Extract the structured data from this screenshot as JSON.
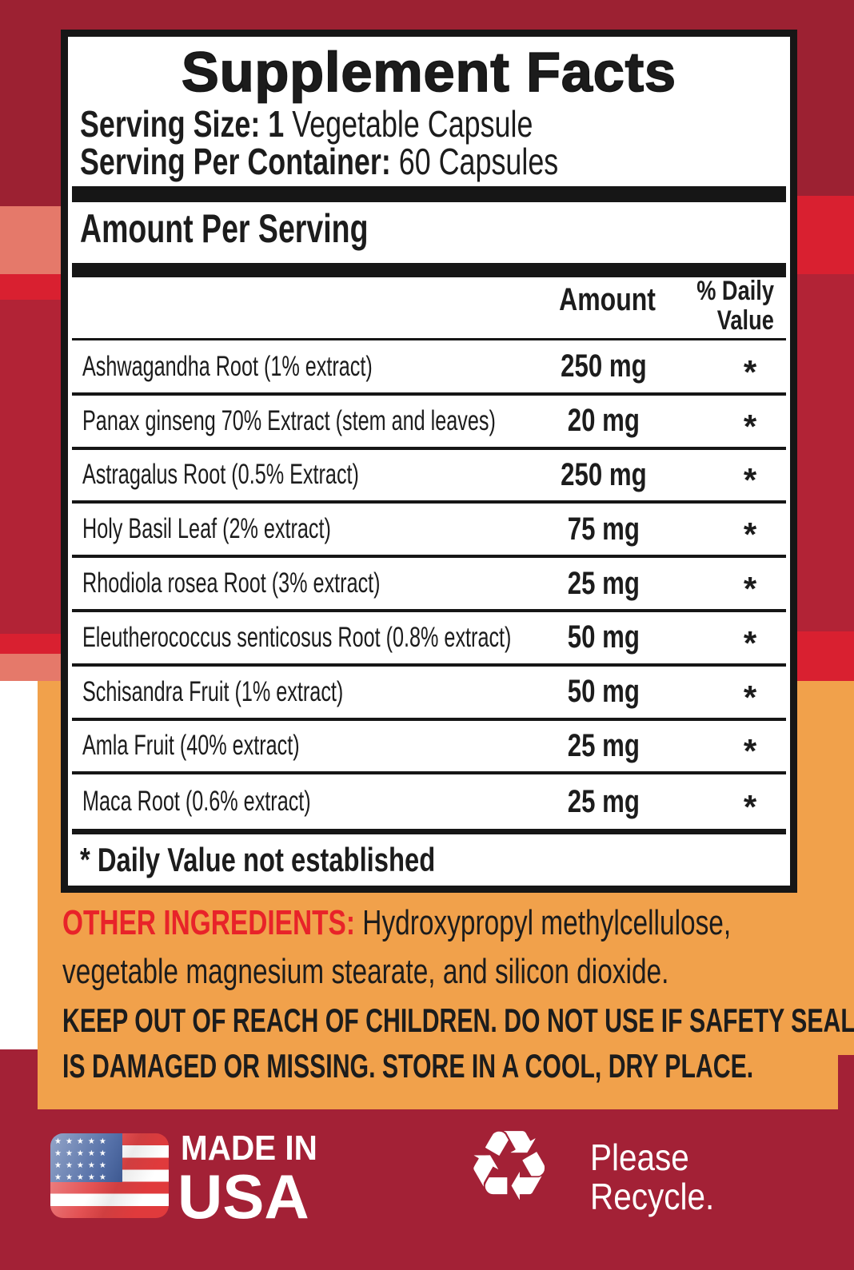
{
  "colors": {
    "bg_top_red": "#9C2132",
    "bg_mid_red": "#B22336",
    "bg_bright_red": "#D92030",
    "bg_salmon": "#E5796A",
    "bg_orange": "#F1A14B",
    "bg_bottom_red": "#A32136",
    "ingredients_label_red": "#E82329",
    "text_dark": "#1C1C1C",
    "flag_blue": "#3C5B9B",
    "flag_red": "#E03A3C"
  },
  "facts": {
    "title": "Supplement Facts",
    "serving_size_bold": "Serving Size: 1",
    "serving_size_regular": " Vegetable Capsule",
    "serving_container_bold": "Serving Per Container:",
    "serving_container_regular": " 60 Capsules",
    "amount_per_serving": "Amount Per Serving",
    "col_amount": "Amount",
    "col_daily_line1": "% Daily",
    "col_daily_line2": "Value",
    "ingredients": [
      {
        "name": "Ashwagandha Root (1% extract)",
        "amount": "250 mg",
        "daily_value": "*"
      },
      {
        "name": "Panax ginseng 70% Extract (stem and leaves)",
        "amount": "20 mg",
        "daily_value": "*"
      },
      {
        "name": "Astragalus Root (0.5% Extract)",
        "amount": "250 mg",
        "daily_value": "*"
      },
      {
        "name": "Holy Basil Leaf (2% extract)",
        "amount": "75 mg",
        "daily_value": "*"
      },
      {
        "name": "Rhodiola rosea Root (3% extract)",
        "amount": "25 mg",
        "daily_value": "*"
      },
      {
        "name": "Eleutherococcus senticosus Root (0.8% extract)",
        "amount": "50 mg",
        "daily_value": "*"
      },
      {
        "name": "Schisandra Fruit (1% extract)",
        "amount": "50 mg",
        "daily_value": "*"
      },
      {
        "name": "Amla Fruit (40% extract)",
        "amount": "25 mg",
        "daily_value": "*"
      },
      {
        "name": "Maca Root (0.6% extract)",
        "amount": "25 mg",
        "daily_value": "*"
      }
    ],
    "footnote": "* Daily Value not established"
  },
  "other_ingredients": {
    "label": "OTHER INGREDIENTS:",
    "line1": " Hydroxypropyl methylcellulose,",
    "line2": "vegetable magnesium stearate, and silicon dioxide."
  },
  "warning": {
    "line1": "KEEP OUT OF REACH OF CHILDREN. DO NOT USE IF SAFETY SEAL",
    "line2": "IS DAMAGED OR MISSING. STORE IN A COOL, DRY PLACE."
  },
  "footer": {
    "flag_icon": "usa-flag-icon",
    "made_in_line1": "MADE IN",
    "made_in_line2": "USA",
    "recycle_icon": "recycle-icon",
    "recycle_glyph": "♻",
    "recycle_line1": "Please",
    "recycle_line2": "Recycle.",
    "flag_stars_row": "★★★★★"
  }
}
